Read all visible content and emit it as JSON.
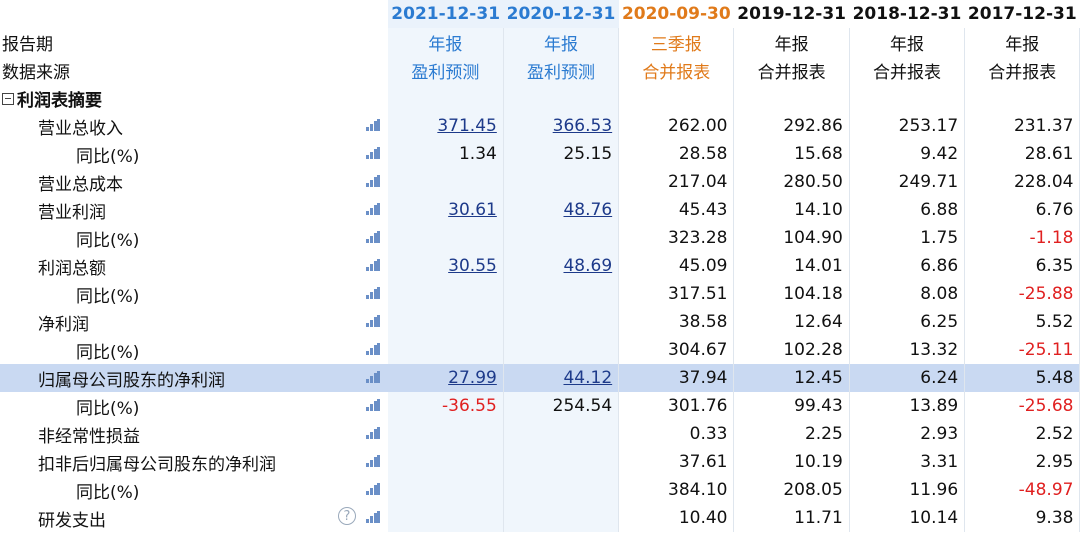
{
  "columns": [
    {
      "date": "2021-12-31",
      "period": "年报",
      "source": "盈利预测",
      "kind": "forecast"
    },
    {
      "date": "2020-12-31",
      "period": "年报",
      "source": "盈利预测",
      "kind": "forecast"
    },
    {
      "date": "2020-09-30",
      "period": "三季报",
      "source": "合并报表",
      "kind": "quarter"
    },
    {
      "date": "2019-12-31",
      "period": "年报",
      "source": "合并报表",
      "kind": "actual"
    },
    {
      "date": "2018-12-31",
      "period": "年报",
      "source": "合并报表",
      "kind": "actual"
    },
    {
      "date": "2017-12-31",
      "period": "年报",
      "source": "合并报表",
      "kind": "actual"
    }
  ],
  "labels": {
    "period": "报告期",
    "source": "数据来源",
    "section": "利润表摘要"
  },
  "icons": {
    "chart": "bar-chart-icon",
    "help": "help-icon",
    "collapse": "collapse-minus-icon"
  },
  "help_glyph": "?",
  "rows": [
    {
      "label": "营业总收入",
      "level": 1,
      "values": [
        "371.45",
        "366.53",
        "262.00",
        "292.86",
        "253.17",
        "231.37"
      ]
    },
    {
      "label": "同比(%)",
      "level": 2,
      "values": [
        "1.34",
        "25.15",
        "28.58",
        "15.68",
        "9.42",
        "28.61"
      ]
    },
    {
      "label": "营业总成本",
      "level": 1,
      "values": [
        "",
        "",
        "217.04",
        "280.50",
        "249.71",
        "228.04"
      ]
    },
    {
      "label": "营业利润",
      "level": 1,
      "values": [
        "30.61",
        "48.76",
        "45.43",
        "14.10",
        "6.88",
        "6.76"
      ]
    },
    {
      "label": "同比(%)",
      "level": 2,
      "values": [
        "",
        "",
        "323.28",
        "104.90",
        "1.75",
        "-1.18"
      ]
    },
    {
      "label": "利润总额",
      "level": 1,
      "values": [
        "30.55",
        "48.69",
        "45.09",
        "14.01",
        "6.86",
        "6.35"
      ]
    },
    {
      "label": "同比(%)",
      "level": 2,
      "values": [
        "",
        "",
        "317.51",
        "104.18",
        "8.08",
        "-25.88"
      ]
    },
    {
      "label": "净利润",
      "level": 1,
      "values": [
        "",
        "",
        "38.58",
        "12.64",
        "6.25",
        "5.52"
      ]
    },
    {
      "label": "同比(%)",
      "level": 2,
      "values": [
        "",
        "",
        "304.67",
        "102.28",
        "13.32",
        "-25.11"
      ]
    },
    {
      "label": "归属母公司股东的净利润",
      "level": 1,
      "highlight": true,
      "values": [
        "27.99",
        "44.12",
        "37.94",
        "12.45",
        "6.24",
        "5.48"
      ]
    },
    {
      "label": "同比(%)",
      "level": 2,
      "values": [
        "-36.55",
        "254.54",
        "301.76",
        "99.43",
        "13.89",
        "-25.68"
      ]
    },
    {
      "label": "非经常性损益",
      "level": 1,
      "values": [
        "",
        "",
        "0.33",
        "2.25",
        "2.93",
        "2.52"
      ]
    },
    {
      "label": "扣非后归属母公司股东的净利润",
      "level": 1,
      "values": [
        "",
        "",
        "37.61",
        "10.19",
        "3.31",
        "2.95"
      ]
    },
    {
      "label": "同比(%)",
      "level": 2,
      "values": [
        "",
        "",
        "384.10",
        "208.05",
        "11.96",
        "-48.97"
      ]
    },
    {
      "label": "研发支出",
      "level": 1,
      "help": true,
      "values": [
        "",
        "",
        "10.40",
        "11.71",
        "10.14",
        "9.38"
      ]
    }
  ],
  "colors": {
    "forecast": "#2b7bd1",
    "quarter": "#e07a1a",
    "negative": "#e02020",
    "link": "#1d3a8a",
    "highlight": "#c9d9f2"
  }
}
